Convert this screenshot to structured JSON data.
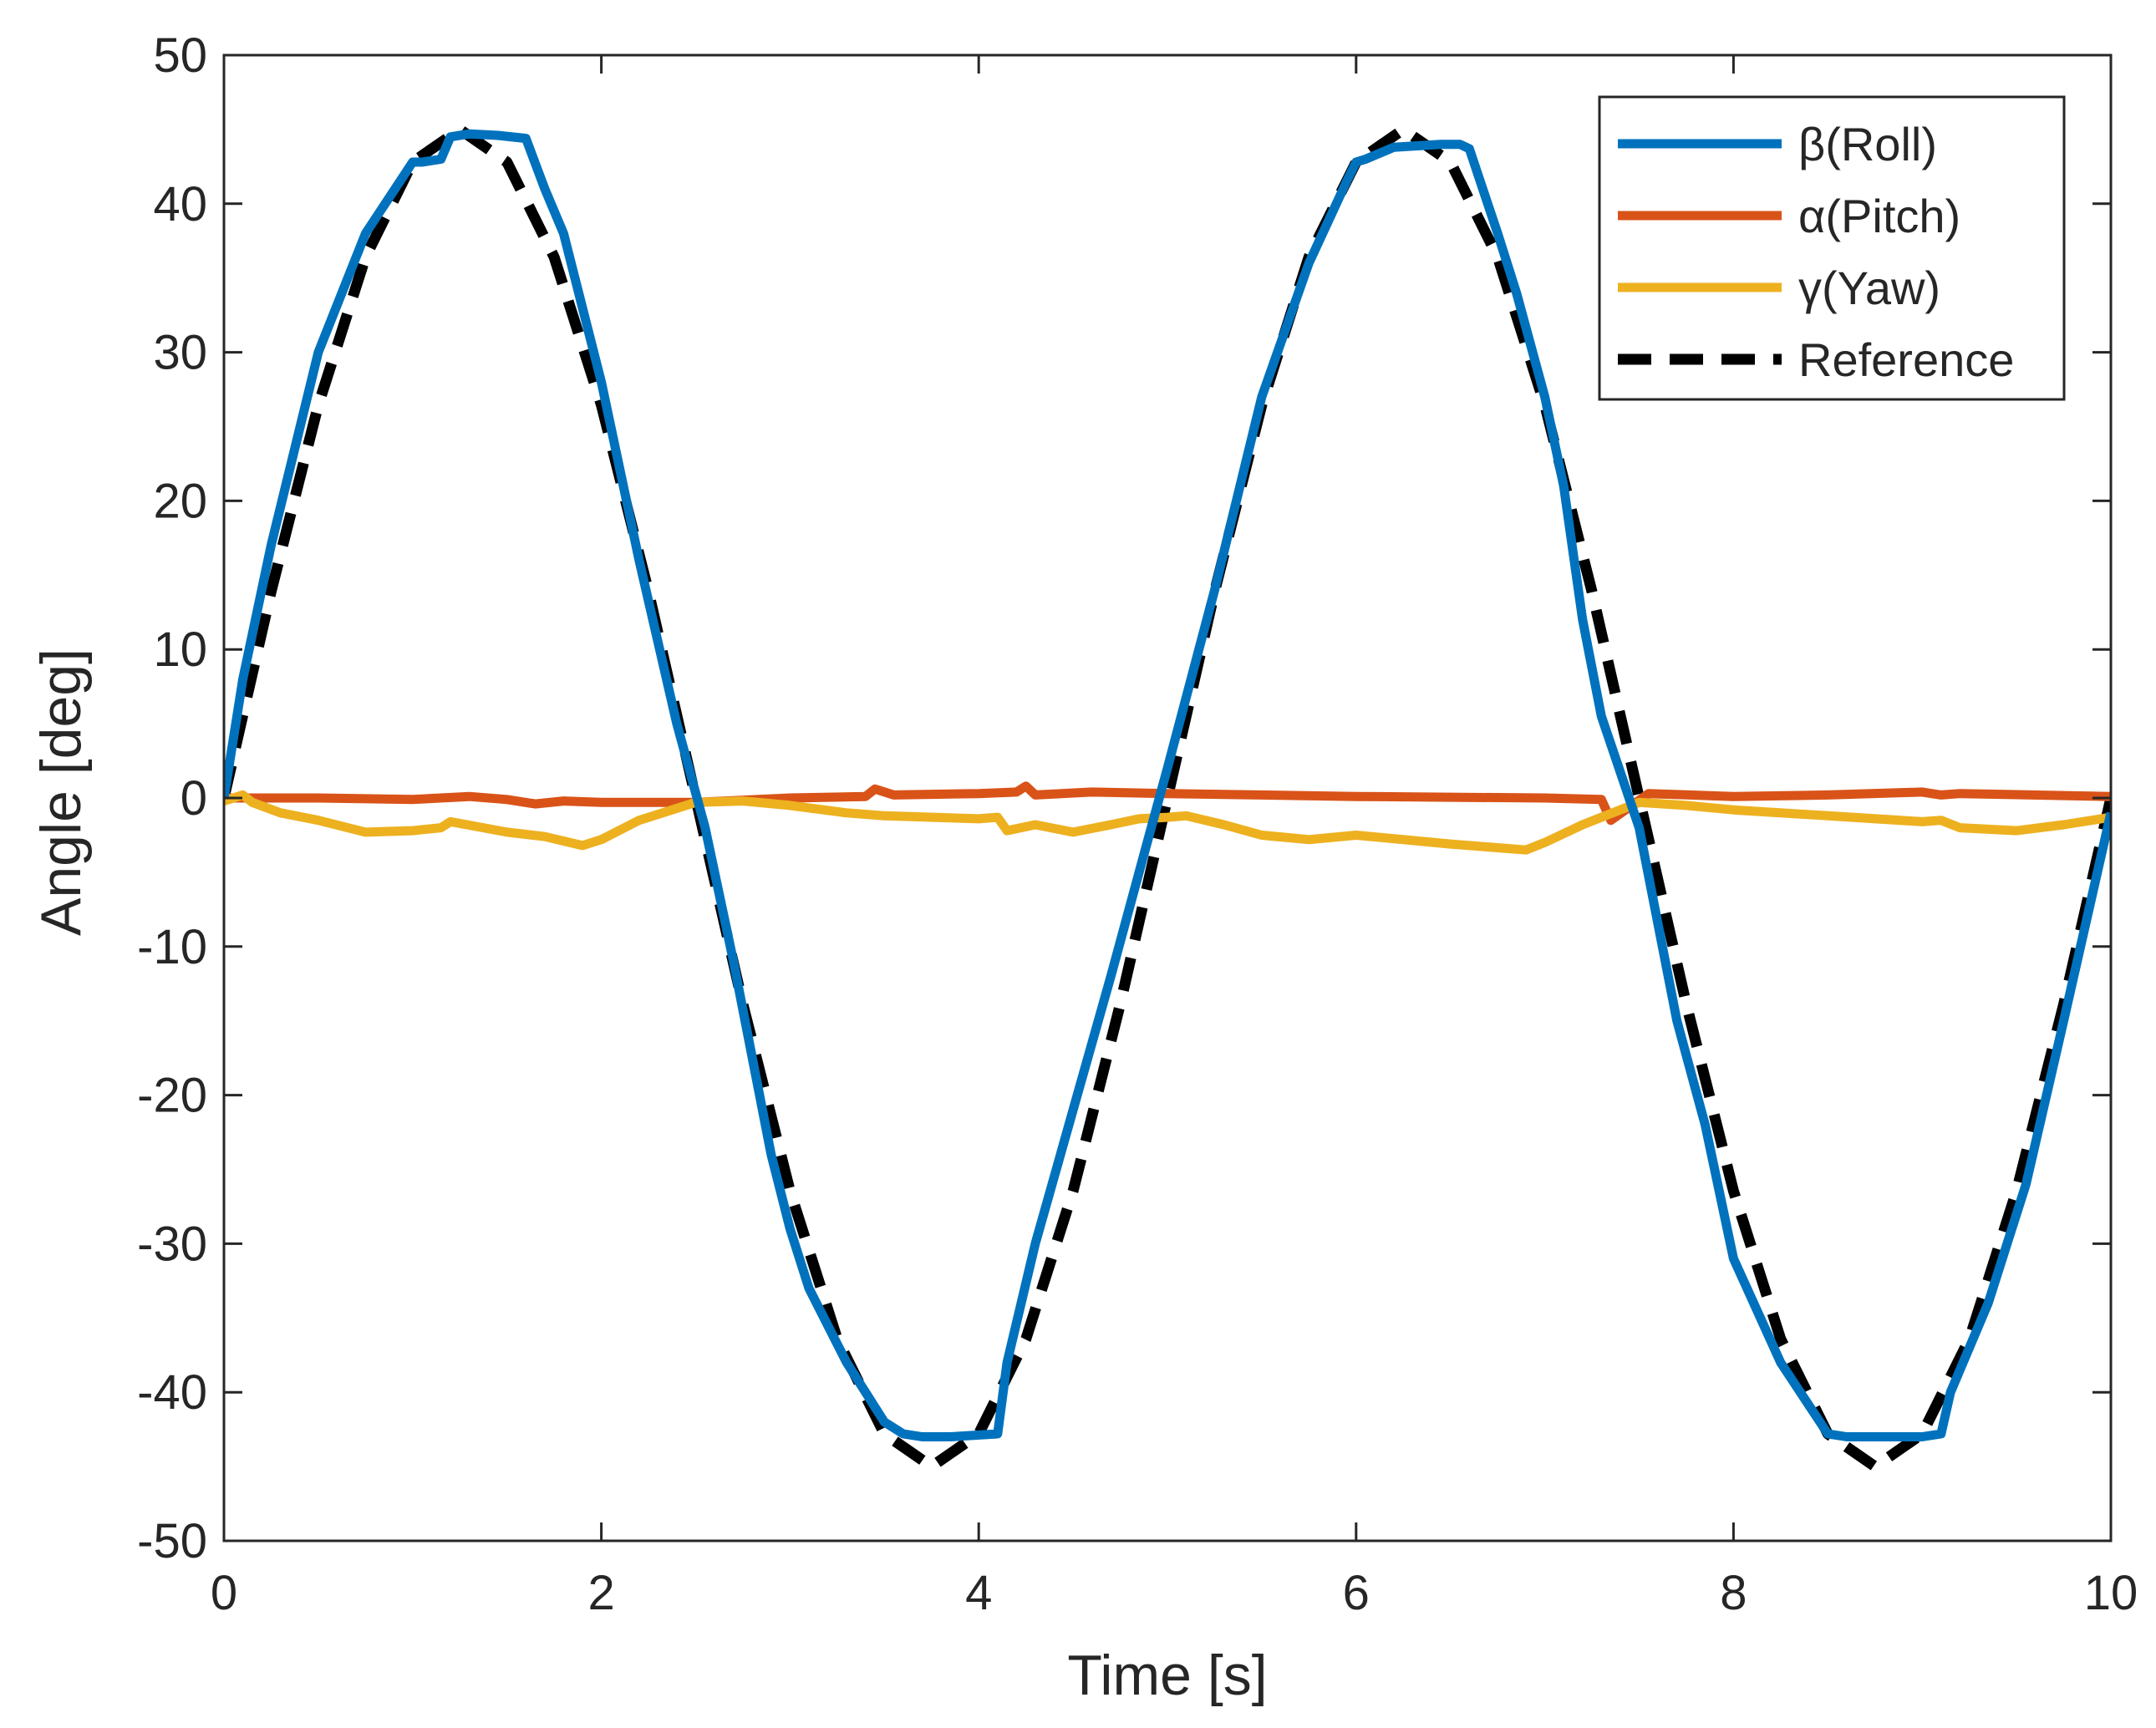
{
  "chart_data": {
    "type": "line",
    "title": "",
    "xlabel": "Time [s]",
    "ylabel": "Angle [deg]",
    "xlim": [
      0,
      10
    ],
    "ylim": [
      -50,
      50
    ],
    "xticks": [
      0,
      2,
      4,
      6,
      8,
      10
    ],
    "yticks": [
      -50,
      -40,
      -30,
      -20,
      -10,
      0,
      10,
      20,
      30,
      40,
      50
    ],
    "grid": false,
    "box": true,
    "legend_position": "top-right",
    "series": [
      {
        "name": "β(Roll)",
        "color": "#0072BD",
        "style": "solid",
        "x": [
          0,
          0.1,
          0.25,
          0.5,
          0.75,
          1.0,
          1.05,
          1.15,
          1.2,
          1.3,
          1.45,
          1.6,
          1.7,
          1.8,
          2.0,
          2.2,
          2.4,
          2.55,
          2.7,
          2.9,
          3.0,
          3.1,
          3.3,
          3.5,
          3.6,
          3.7,
          3.85,
          4.1,
          4.15,
          4.3,
          4.5,
          4.7,
          4.85,
          5.0,
          5.25,
          5.5,
          5.75,
          5.95,
          6.0,
          6.05,
          6.2,
          6.45,
          6.55,
          6.6,
          6.75,
          6.85,
          7.0,
          7.1,
          7.2,
          7.3,
          7.5,
          7.7,
          7.85,
          8.0,
          8.25,
          8.5,
          8.6,
          8.75,
          9.0,
          9.1,
          9.15,
          9.35,
          9.55,
          9.75,
          10.0
        ],
        "y": [
          0,
          8,
          17,
          30,
          38,
          42.8,
          42.8,
          43,
          44.5,
          44.7,
          44.6,
          44.4,
          41,
          38,
          28,
          16,
          5,
          -2,
          -11,
          -24,
          -29,
          -33,
          -38,
          -42,
          -42.8,
          -43,
          -43,
          -42.8,
          -38,
          -30,
          -21,
          -12,
          -5,
          2,
          14,
          27,
          36,
          41.5,
          42.8,
          43,
          43.8,
          44,
          44,
          43.7,
          38,
          34,
          27,
          21,
          12,
          5.5,
          -2,
          -15,
          -22,
          -31,
          -38,
          -42.8,
          -43,
          -43,
          -43,
          -42.8,
          -40,
          -34,
          -26,
          -15,
          -1
        ]
      },
      {
        "name": "α(Pitch)",
        "color": "#D95319",
        "style": "solid",
        "x": [
          0,
          0.5,
          1.0,
          1.3,
          1.5,
          1.65,
          1.8,
          2.0,
          2.5,
          3.0,
          3.4,
          3.45,
          3.55,
          4.0,
          4.2,
          4.25,
          4.3,
          4.6,
          5.0,
          6.0,
          7.0,
          7.3,
          7.35,
          7.45,
          7.55,
          8.0,
          8.5,
          9.0,
          9.1,
          9.2,
          10.0
        ],
        "y": [
          0,
          0,
          -0.1,
          0.1,
          -0.1,
          -0.4,
          -0.2,
          -0.3,
          -0.3,
          0,
          0.1,
          0.6,
          0.2,
          0.3,
          0.4,
          0.8,
          0.2,
          0.4,
          0.3,
          0.1,
          0,
          -0.1,
          -1.5,
          -0.6,
          0.3,
          0.1,
          0.2,
          0.4,
          0.2,
          0.3,
          0.1
        ]
      },
      {
        "name": "γ(Yaw)",
        "color": "#EDB120",
        "style": "solid",
        "x": [
          0,
          0.1,
          0.15,
          0.3,
          0.5,
          0.75,
          1.0,
          1.15,
          1.2,
          1.5,
          1.7,
          1.9,
          2.0,
          2.2,
          2.5,
          2.75,
          3.0,
          3.3,
          3.5,
          4.0,
          4.1,
          4.15,
          4.3,
          4.5,
          4.7,
          4.85,
          5.0,
          5.1,
          5.3,
          5.5,
          5.75,
          6.0,
          6.5,
          6.9,
          7.0,
          7.2,
          7.3,
          7.5,
          7.75,
          8.0,
          8.5,
          9.0,
          9.1,
          9.2,
          9.5,
          9.75,
          10.0
        ],
        "y": [
          -0.2,
          0.2,
          -0.3,
          -1,
          -1.5,
          -2.3,
          -2.2,
          -2,
          -1.6,
          -2.3,
          -2.6,
          -3.2,
          -2.8,
          -1.5,
          -0.3,
          -0.2,
          -0.5,
          -1,
          -1.2,
          -1.4,
          -1.3,
          -2.2,
          -1.8,
          -2.3,
          -1.8,
          -1.4,
          -1.3,
          -1.2,
          -1.8,
          -2.5,
          -2.8,
          -2.5,
          -3.1,
          -3.5,
          -3,
          -1.8,
          -1.3,
          -0.3,
          -0.5,
          -0.8,
          -1.2,
          -1.6,
          -1.5,
          -2,
          -2.2,
          -1.8,
          -1.3
        ]
      },
      {
        "name": "Reference",
        "color": "#000000",
        "style": "dashed",
        "function": "45*sin(2*pi*t/5)",
        "x": [
          0,
          0.25,
          0.5,
          0.75,
          1.0,
          1.25,
          1.5,
          1.75,
          2.0,
          2.25,
          2.5,
          2.75,
          3.0,
          3.25,
          3.5,
          3.75,
          4.0,
          4.25,
          4.5,
          4.75,
          5.0,
          5.25,
          5.5,
          5.75,
          6.0,
          6.25,
          6.5,
          6.75,
          7.0,
          7.25,
          7.5,
          7.75,
          8.0,
          8.25,
          8.5,
          8.75,
          9.0,
          9.25,
          9.5,
          9.75,
          10.0
        ],
        "y": [
          0,
          13.9,
          26.45,
          36.41,
          42.8,
          45,
          42.8,
          36.41,
          26.45,
          13.9,
          0,
          -13.9,
          -26.45,
          -36.41,
          -42.8,
          -45,
          -42.8,
          -36.41,
          -26.45,
          -13.9,
          0,
          13.9,
          26.45,
          36.41,
          42.8,
          45,
          42.8,
          36.41,
          26.45,
          13.9,
          0,
          -13.9,
          -26.45,
          -36.41,
          -42.8,
          -45,
          -42.8,
          -36.41,
          -26.45,
          -13.9,
          0
        ]
      }
    ]
  }
}
